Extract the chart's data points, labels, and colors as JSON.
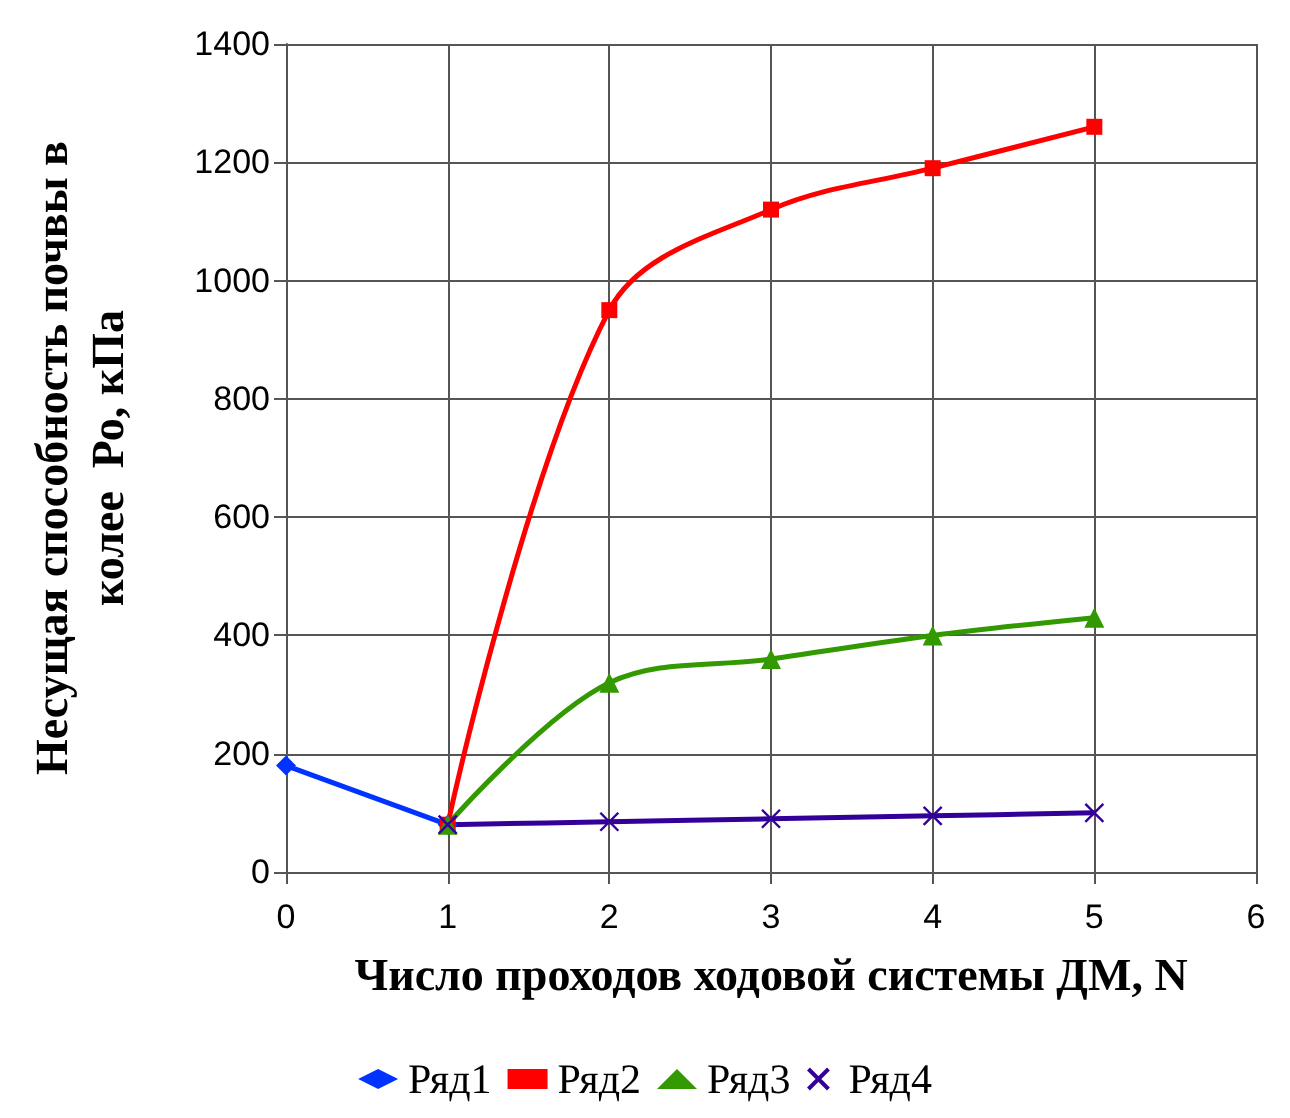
{
  "chart_data": {
    "type": "line",
    "xlabel": "Число проходов ходовой системы ДМ, N",
    "ylabel": "Несущая способность почвы в колее  Ро, кПа",
    "series": [
      {
        "name": "Ряд1",
        "color": "#0033ff",
        "marker": "diamond",
        "x": [
          0,
          1
        ],
        "values": [
          180,
          80
        ]
      },
      {
        "name": "Ряд2",
        "color": "#ff0000",
        "marker": "square",
        "x": [
          1,
          2,
          3,
          4,
          5
        ],
        "values": [
          80,
          950,
          1120,
          1190,
          1260
        ]
      },
      {
        "name": "Ряд3",
        "color": "#339900",
        "marker": "triangle",
        "x": [
          1,
          2,
          3,
          4,
          5
        ],
        "values": [
          80,
          320,
          360,
          400,
          430
        ]
      },
      {
        "name": "Ряд4",
        "color": "#330099",
        "marker": "cross",
        "x": [
          1,
          2,
          3,
          4,
          5
        ],
        "values": [
          80,
          85,
          90,
          95,
          100
        ]
      }
    ],
    "xlim": [
      0,
      6
    ],
    "xticks": [
      0,
      1,
      2,
      3,
      4,
      5,
      6
    ],
    "ylim": [
      0,
      1400
    ],
    "yticks": [
      0,
      200,
      400,
      600,
      800,
      1000,
      1200,
      1400
    ],
    "grid": true,
    "legend": "bottom"
  }
}
